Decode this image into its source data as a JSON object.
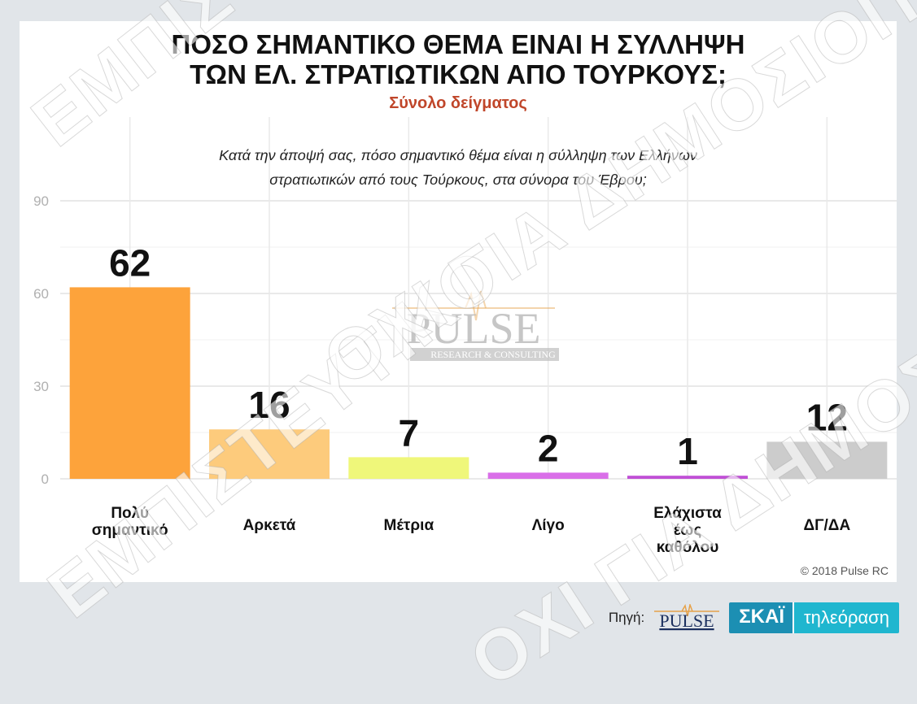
{
  "title": "ΠΟΣΟ ΣΗΜΑΝΤΙΚΟ ΘΕΜΑ ΕΙΝΑΙ Η ΣΥΛΛΗΨΗ\nΤΩΝ ΕΛ. ΣΤΡΑΤΙΩΤΙΚΩΝ ΑΠΟ ΤΟΥΡΚΟΥΣ;",
  "subtitle": "Σύνολο δείγματος",
  "question": "Κατά την άποψή σας, πόσο σημαντικό θέμα είναι η σύλληψη των Ελλήνων\nστρατιωτικών από τους Τούρκους, στα σύνορα του Έβρου;",
  "copyright": "© 2018 Pulse RC",
  "logo": {
    "name": "PULSE",
    "tagline": "RESEARCH & CONSULTING"
  },
  "watermark": {
    "text1": "ΕΜΠΙΣΤΕΥΤΙΚΟ",
    "text2": "ΟΧΙ ΓΙΑ ΔΗΜΟΣΙΟΠΟΙΗΣΗ"
  },
  "footer": {
    "source_label": "Πηγή:",
    "channel": "ΣΚΑΪ",
    "channel_sub": "τηλεόραση"
  },
  "chart_data": {
    "type": "bar",
    "title": "ΠΟΣΟ ΣΗΜΑΝΤΙΚΟ ΘΕΜΑ ΕΙΝΑΙ Η ΣΥΛΛΗΨΗ ΤΩΝ ΕΛ. ΣΤΡΑΤΙΩΤΙΚΩΝ ΑΠΟ ΤΟΥΡΚΟΥΣ;",
    "subtitle": "Σύνολο δείγματος",
    "categories": [
      "Πολύ\nσημαντικό",
      "Αρκετά",
      "Μέτρια",
      "Λίγο",
      "Ελάχιστα\nέως\nκαθόλου",
      "ΔΓ/ΔΑ"
    ],
    "values": [
      62,
      16,
      7,
      2,
      1,
      12
    ],
    "colors": [
      "#fda33b",
      "#fdcb7c",
      "#eff77a",
      "#d96fe8",
      "#c04fd6",
      "#cccccc"
    ],
    "ylim": [
      0,
      90
    ],
    "yticks": [
      0,
      30,
      60,
      90
    ],
    "grid": true,
    "xlabel": "",
    "ylabel": ""
  }
}
